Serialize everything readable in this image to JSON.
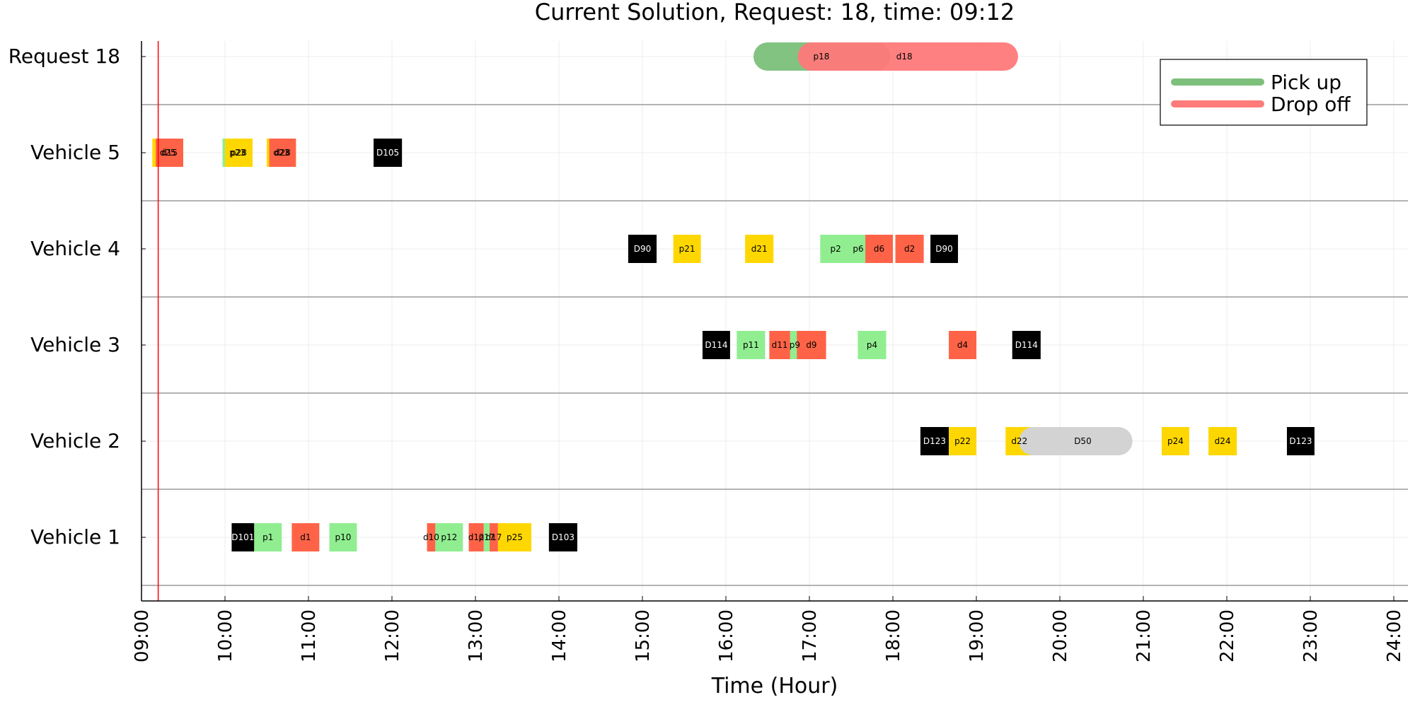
{
  "chart_data": {
    "type": "gantt",
    "title": "Current Solution, Request: 18, time: 09:12",
    "xlabel": "Time (Hour)",
    "xlim": [
      9,
      24
    ],
    "x_ticks": [
      "09:00",
      "10:00",
      "11:00",
      "12:00",
      "13:00",
      "14:00",
      "15:00",
      "16:00",
      "17:00",
      "18:00",
      "19:00",
      "20:00",
      "21:00",
      "22:00",
      "23:00",
      "24:00"
    ],
    "current_time": 9.2,
    "legend": {
      "position": "top-right",
      "entries": [
        {
          "label": "Pick up",
          "color": "#7cc07c"
        },
        {
          "label": "Drop off",
          "color": "#ff7a7a"
        }
      ]
    },
    "colors": {
      "pickup": "#90ee90",
      "dropoff": "#ff6347",
      "gold": "#ffd700",
      "depot": "#000000",
      "idle": "#d3d3d3",
      "current_line": "#ff0000"
    },
    "rows": [
      {
        "label": "Request 18",
        "request": true,
        "windows": [
          {
            "label": "p18",
            "start": 16.5,
            "end": 17.8,
            "kind": "pickup"
          },
          {
            "label": "d18",
            "start": 17.03,
            "end": 19.33,
            "kind": "dropoff"
          }
        ]
      },
      {
        "label": "Vehicle 5",
        "segments": [
          {
            "label": "d25",
            "start": 9.13,
            "end": 9.5,
            "color": "gold"
          },
          {
            "label": "d15",
            "start": 9.17,
            "end": 9.5,
            "color": "dropoff"
          },
          {
            "label": "p23",
            "start": 9.97,
            "end": 10.33,
            "color": "pickup"
          },
          {
            "label": "p28",
            "start": 10.0,
            "end": 10.33,
            "color": "gold"
          },
          {
            "label": "d23",
            "start": 10.5,
            "end": 10.85,
            "color": "gold"
          },
          {
            "label": "d28",
            "start": 10.53,
            "end": 10.85,
            "color": "dropoff"
          },
          {
            "label": "D105",
            "start": 11.78,
            "end": 12.12,
            "color": "depot"
          }
        ]
      },
      {
        "label": "Vehicle 4",
        "segments": [
          {
            "label": "D90",
            "start": 14.83,
            "end": 15.17,
            "color": "depot"
          },
          {
            "label": "p21",
            "start": 15.37,
            "end": 15.7,
            "color": "gold"
          },
          {
            "label": "d21",
            "start": 16.23,
            "end": 16.57,
            "color": "gold"
          },
          {
            "label": "p2",
            "start": 17.13,
            "end": 17.5,
            "color": "pickup"
          },
          {
            "label": "p6",
            "start": 17.5,
            "end": 17.67,
            "color": "pickup"
          },
          {
            "label": "d6",
            "start": 17.67,
            "end": 18.0,
            "color": "dropoff"
          },
          {
            "label": "d2",
            "start": 18.03,
            "end": 18.37,
            "color": "dropoff"
          },
          {
            "label": "D90",
            "start": 18.45,
            "end": 18.78,
            "color": "depot"
          }
        ]
      },
      {
        "label": "Vehicle 3",
        "segments": [
          {
            "label": "D114",
            "start": 15.72,
            "end": 16.05,
            "color": "depot"
          },
          {
            "label": "p11",
            "start": 16.13,
            "end": 16.47,
            "color": "pickup"
          },
          {
            "label": "d11",
            "start": 16.52,
            "end": 16.77,
            "color": "dropoff"
          },
          {
            "label": "p9",
            "start": 16.77,
            "end": 16.88,
            "color": "pickup"
          },
          {
            "label": "d9",
            "start": 16.85,
            "end": 17.2,
            "color": "dropoff"
          },
          {
            "label": "p4",
            "start": 17.58,
            "end": 17.92,
            "color": "pickup"
          },
          {
            "label": "d4",
            "start": 18.67,
            "end": 19.0,
            "color": "dropoff"
          },
          {
            "label": "D114",
            "start": 19.43,
            "end": 19.77,
            "color": "depot"
          }
        ]
      },
      {
        "label": "Vehicle 2",
        "segments": [
          {
            "label": "D123",
            "start": 18.33,
            "end": 18.67,
            "color": "depot"
          },
          {
            "label": "p22",
            "start": 18.67,
            "end": 19.0,
            "color": "gold"
          },
          {
            "label": "d22",
            "start": 19.35,
            "end": 19.68,
            "color": "gold"
          },
          {
            "label": "D50",
            "start": 19.68,
            "end": 20.87,
            "color": "idle",
            "rounded": true
          },
          {
            "label": "p24",
            "start": 21.22,
            "end": 21.55,
            "color": "gold"
          },
          {
            "label": "d24",
            "start": 21.78,
            "end": 22.12,
            "color": "gold"
          },
          {
            "label": "D123",
            "start": 22.72,
            "end": 23.05,
            "color": "depot"
          }
        ]
      },
      {
        "label": "Vehicle 1",
        "segments": [
          {
            "label": "D101",
            "start": 10.08,
            "end": 10.35,
            "color": "depot"
          },
          {
            "label": "p1",
            "start": 10.35,
            "end": 10.68,
            "color": "pickup"
          },
          {
            "label": "d1",
            "start": 10.8,
            "end": 11.13,
            "color": "dropoff"
          },
          {
            "label": "p10",
            "start": 11.25,
            "end": 11.58,
            "color": "pickup"
          },
          {
            "label": "d10",
            "start": 12.42,
            "end": 12.52,
            "color": "dropoff"
          },
          {
            "label": "p12",
            "start": 12.52,
            "end": 12.85,
            "color": "pickup"
          },
          {
            "label": "d12",
            "start": 12.92,
            "end": 13.1,
            "color": "dropoff"
          },
          {
            "label": "p17",
            "start": 13.1,
            "end": 13.17,
            "color": "pickup"
          },
          {
            "label": "d17",
            "start": 13.17,
            "end": 13.27,
            "color": "dropoff"
          },
          {
            "label": "p25",
            "start": 13.27,
            "end": 13.67,
            "color": "gold"
          },
          {
            "label": "D103",
            "start": 13.88,
            "end": 14.22,
            "color": "depot"
          }
        ]
      }
    ]
  }
}
